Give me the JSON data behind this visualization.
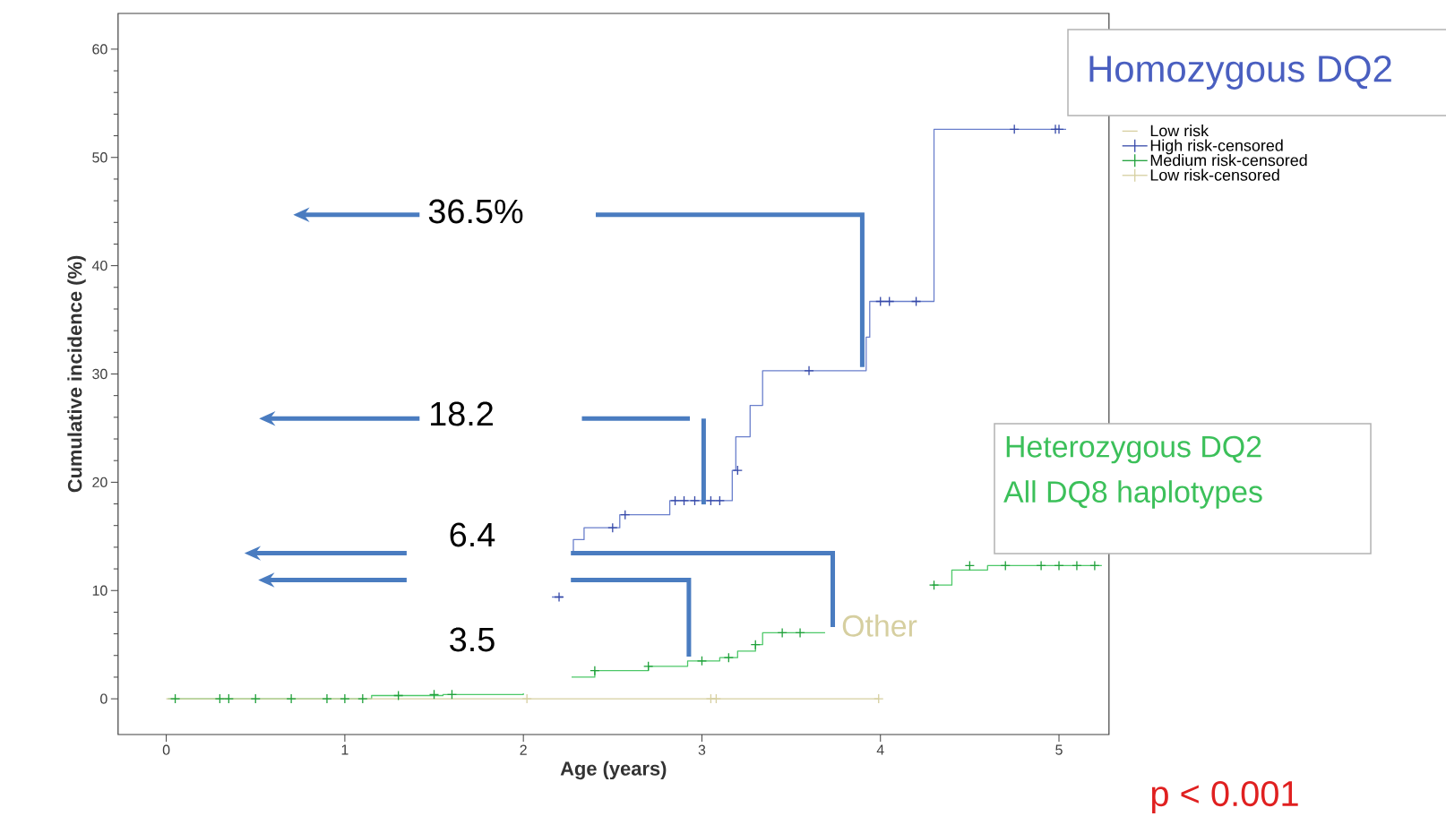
{
  "chart_data": {
    "type": "step",
    "xlabel": "Age (years)",
    "ylabel": "Cumulative incidence (%)",
    "xlim": [
      -0.27,
      5.28
    ],
    "ylim": [
      -3.3,
      63.3
    ],
    "xticks": [
      0,
      1,
      2,
      3,
      4,
      5
    ],
    "yticks": [
      0,
      10,
      20,
      30,
      40,
      50,
      60
    ],
    "legend": "right",
    "series": [
      {
        "color": "#6a7fcc",
        "x": [
          2.16,
          2.22,
          2.25,
          2.27,
          2.28,
          2.34,
          2.54,
          2.82,
          3.17,
          3.19,
          3.27,
          3.34,
          3.92,
          3.94,
          4.3,
          5.04
        ],
        "values": [
          9.4,
          9.4,
          null,
          13.5,
          14.7,
          15.8,
          17.0,
          18.3,
          21.1,
          24.2,
          27.1,
          30.3,
          33.4,
          36.7,
          52.6,
          52.6
        ]
      },
      {
        "color": "#4cc868",
        "x": [
          0.01,
          1.15,
          1.55,
          2.0,
          2.1,
          2.27,
          2.4,
          2.7,
          2.92,
          3.1,
          3.2,
          3.3,
          3.34,
          3.69,
          4.0,
          4.29,
          4.4,
          4.6,
          5.24
        ],
        "values": [
          0,
          0.3,
          0.4,
          0.5,
          null,
          2.0,
          2.6,
          3.0,
          3.5,
          3.8,
          4.4,
          5.0,
          6.1,
          6.1,
          null,
          10.5,
          11.9,
          12.3,
          12.3
        ]
      },
      {
        "name": "Low risk",
        "color": "#d6cfa0",
        "x": [
          0,
          3.99
        ],
        "values": [
          0,
          0
        ]
      },
      {
        "name": "High risk-censored",
        "type": "scatter",
        "marker": "cross",
        "color": "#3548a8",
        "x": [
          2.2,
          2.5,
          2.57,
          2.85,
          2.9,
          2.96,
          3.05,
          3.1,
          3.2,
          3.6,
          4.0,
          4.05,
          4.2,
          4.75,
          4.98,
          5.0
        ],
        "values": [
          9.4,
          15.8,
          17.0,
          18.3,
          18.3,
          18.3,
          18.3,
          18.3,
          21.1,
          30.3,
          36.7,
          36.7,
          36.7,
          52.6,
          52.6,
          52.6
        ]
      },
      {
        "name": "Medium risk-censored",
        "type": "scatter",
        "marker": "cross",
        "color": "#1fa03a",
        "x": [
          0.05,
          0.3,
          0.35,
          0.5,
          0.7,
          0.9,
          1.0,
          1.1,
          1.3,
          1.5,
          1.6,
          2.4,
          2.7,
          3.0,
          3.15,
          3.3,
          3.45,
          3.55,
          4.3,
          4.5,
          4.7,
          4.9,
          5.0,
          5.1,
          5.2
        ],
        "values": [
          0,
          0,
          0,
          0,
          0,
          0,
          0,
          0,
          0.3,
          0.4,
          0.4,
          2.6,
          3.0,
          3.5,
          3.8,
          5.0,
          6.1,
          6.1,
          10.5,
          12.3,
          12.3,
          12.3,
          12.3,
          12.3,
          12.3
        ]
      },
      {
        "name": "Low risk-censored",
        "type": "scatter",
        "marker": "cross",
        "color": "#d6cfa0",
        "x": [
          2.02,
          3.05,
          3.08,
          3.99
        ],
        "values": [
          0,
          0,
          0,
          0
        ]
      }
    ],
    "annotations": [
      "Homozygous DQ2",
      "Heterozygous DQ2",
      "All DQ8 haplotypes",
      {
        "text": "Other",
        "x": 3.69,
        "y": 6.1
      },
      "36.5%",
      "18.2",
      "6.4",
      "3.5",
      "p < 0.001"
    ]
  }
}
